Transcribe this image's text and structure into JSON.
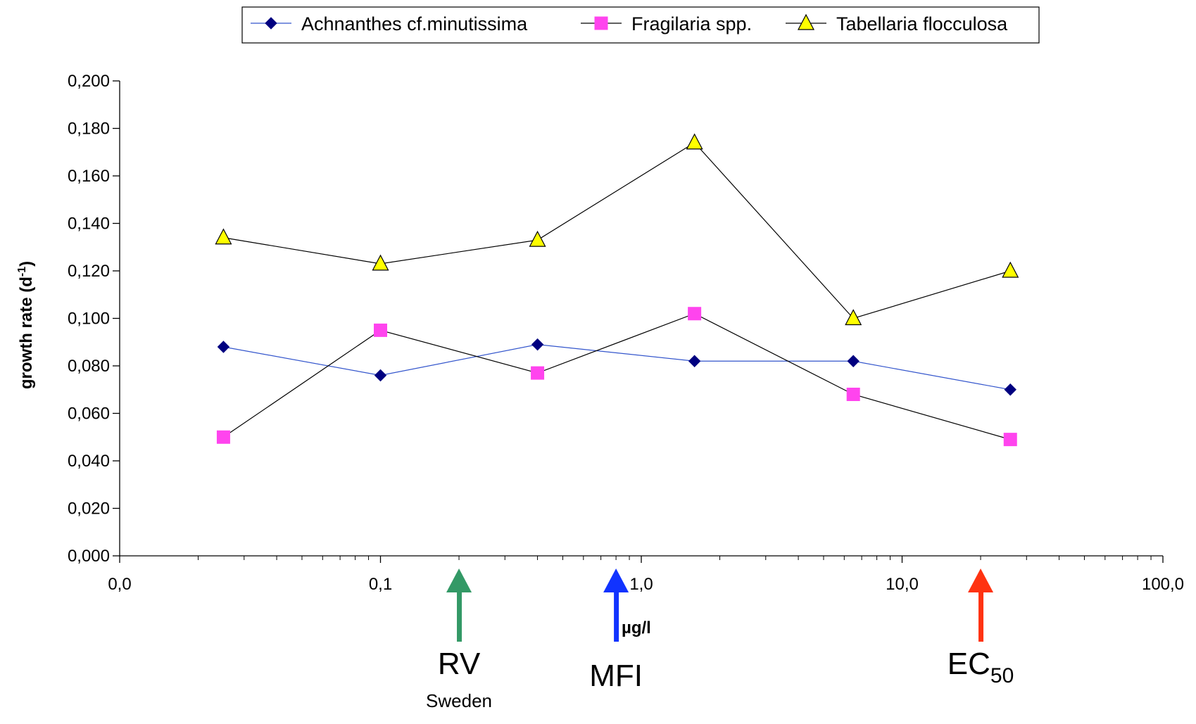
{
  "chart_data": {
    "type": "line",
    "x_scale": "log",
    "x": [
      0.025,
      0.1,
      0.4,
      1.6,
      6.5,
      26
    ],
    "x_tick_labels": [
      "0,0",
      "0,1",
      "1,0",
      "10,0",
      "100,0"
    ],
    "x_tick_values": [
      0.01,
      0.1,
      1,
      10,
      100
    ],
    "xlim": [
      0.01,
      100
    ],
    "xlabel": "µg/l",
    "ylabel_main": "growth rate (d",
    "ylabel_sup": "-1",
    "ylabel_close": ")",
    "ylim": [
      0,
      0.2
    ],
    "y_tick_values": [
      0,
      0.02,
      0.04,
      0.06,
      0.08,
      0.1,
      0.12,
      0.14,
      0.16,
      0.18,
      0.2
    ],
    "y_tick_labels": [
      "0,000",
      "0,020",
      "0,040",
      "0,060",
      "0,080",
      "0,100",
      "0,120",
      "0,140",
      "0,160",
      "0,180",
      "0,200"
    ],
    "grid": false,
    "legend_position": "top-center",
    "series": [
      {
        "name": "Achnanthes cf.minutissima",
        "values": [
          0.088,
          0.076,
          0.089,
          0.082,
          0.082,
          0.07
        ],
        "marker": "diamond",
        "marker_color": "#000080",
        "line_color": "#3355cc"
      },
      {
        "name": "Fragilaria spp.",
        "values": [
          0.05,
          0.095,
          0.077,
          0.102,
          0.068,
          0.049
        ],
        "marker": "square",
        "marker_color": "#ff44ee",
        "line_color": "#000000"
      },
      {
        "name": "Tabellaria flocculosa",
        "values": [
          0.134,
          0.123,
          0.133,
          0.174,
          0.1,
          0.12
        ],
        "marker": "triangle",
        "marker_color": "#ffff00",
        "line_color": "#000000"
      }
    ],
    "annotations": [
      {
        "label": "RV",
        "sublabel": "Sweden",
        "x": 0.2,
        "color": "#339966"
      },
      {
        "label": "MFI",
        "sublabel": "",
        "x": 0.8,
        "color": "#1133ff"
      },
      {
        "label": "EC",
        "subscript": "50",
        "x": 20,
        "color": "#ff3311"
      }
    ]
  }
}
